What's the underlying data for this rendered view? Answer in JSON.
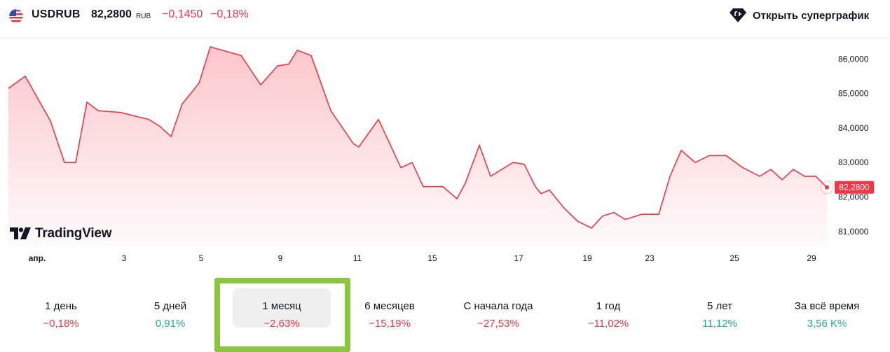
{
  "header": {
    "symbol": "USDRUB",
    "price": "82,2800",
    "currency": "RUB",
    "change_abs": "−0,1450",
    "change_pct": "−0,18%",
    "supergraph_label": "Открыть суперграфик",
    "flag_icon": "us-flag-icon"
  },
  "logo": {
    "text": "TradingView"
  },
  "colors": {
    "negative": "#f23645",
    "positive": "#22ab94",
    "highlight": "#8cc63f"
  },
  "chart_data": {
    "type": "area",
    "y_ticks": [
      "86,0000",
      "85,0000",
      "84,0000",
      "83,0000",
      "82,0000",
      "81,0000"
    ],
    "y_tick_values": [
      86,
      85,
      84,
      83,
      82,
      81
    ],
    "x_ticks": [
      "апр.",
      "3",
      "5",
      "9",
      "11",
      "15",
      "17",
      "19",
      "23",
      "25",
      "29"
    ],
    "last_value_label": "82,2800",
    "last_value": 82.28,
    "ylim": [
      80.55,
      86.35
    ],
    "grid": false,
    "x": [
      0,
      0.6,
      1.5,
      2,
      2.4,
      2.8,
      3.2,
      4,
      5,
      5.4,
      5.8,
      6.2,
      6.8,
      7.2,
      8.3,
      9,
      9.6,
      10,
      10.3,
      10.8,
      11.5,
      12.3,
      12.5,
      13.2,
      14,
      14.4,
      14.8,
      15.5,
      16,
      16.3,
      16.8,
      17.2,
      17.6,
      18,
      18.4,
      18.8,
      19,
      19.3,
      19.8,
      20.3,
      20.8,
      21.2,
      21.6,
      22,
      22.6,
      23.2,
      23.6,
      24,
      24.5,
      25,
      25.6,
      26.2,
      26.8,
      27.2,
      27.6,
      28,
      28.4,
      28.8,
      29.2
    ],
    "values": [
      85.15,
      85.5,
      84.2,
      83,
      83,
      84.75,
      84.5,
      84.45,
      84.25,
      84.05,
      83.75,
      84.7,
      85.3,
      86.35,
      86.1,
      85.25,
      85.8,
      85.85,
      86.25,
      86.1,
      84.5,
      83.55,
      83.45,
      84.25,
      82.85,
      83,
      82.3,
      82.3,
      81.95,
      82.4,
      83.5,
      82.6,
      82.8,
      83,
      82.95,
      82.3,
      82.1,
      82.2,
      81.7,
      81.3,
      81.1,
      81.45,
      81.55,
      81.35,
      81.5,
      81.5,
      82.6,
      83.35,
      83,
      83.2,
      83.2,
      82.85,
      82.6,
      82.8,
      82.5,
      82.8,
      82.6,
      82.6,
      82.28
    ]
  },
  "periods": [
    {
      "label": "1 день",
      "value": "−0,18%",
      "trend": "neg",
      "active": false
    },
    {
      "label": "5 дней",
      "value": "0,91%",
      "trend": "pos",
      "active": false
    },
    {
      "label": "1 месяц",
      "value": "−2,63%",
      "trend": "neg",
      "active": true
    },
    {
      "label": "6 месяцев",
      "value": "−15,19%",
      "trend": "neg",
      "active": false
    },
    {
      "label": "С начала года",
      "value": "−27,53%",
      "trend": "neg",
      "active": false
    },
    {
      "label": "1 год",
      "value": "−11,02%",
      "trend": "neg",
      "active": false
    },
    {
      "label": "5 лет",
      "value": "11,12%",
      "trend": "pos",
      "active": false
    },
    {
      "label": "За всё время",
      "value": "3,56 K%",
      "trend": "pos",
      "active": false
    }
  ]
}
